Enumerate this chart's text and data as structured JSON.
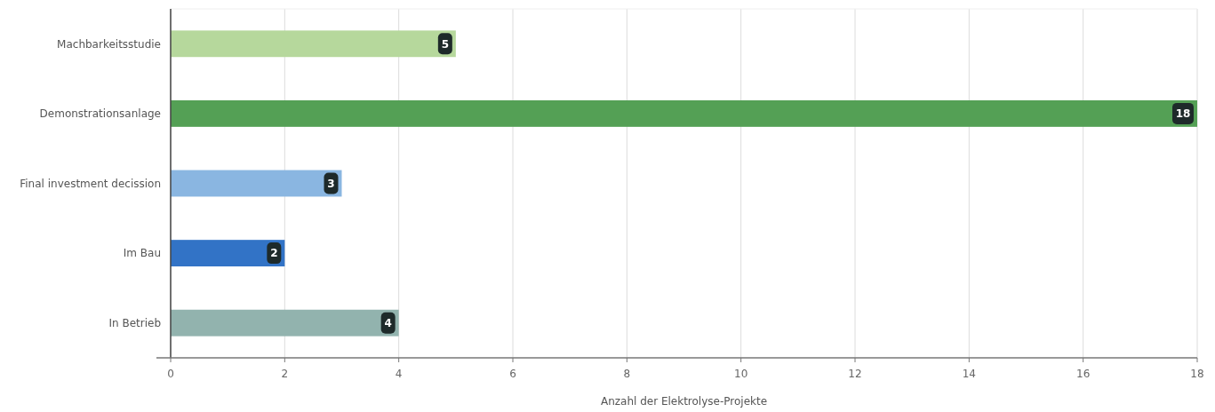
{
  "chart_data": {
    "type": "bar",
    "orientation": "horizontal",
    "xlabel": "Anzahl der Elektrolyse-Projekte",
    "categories": [
      "Machbarkeitsstudie",
      "Demonstrationsanlage",
      "Final investment decission",
      "Im Bau",
      "In Betrieb"
    ],
    "values": [
      5,
      18,
      3,
      2,
      4
    ],
    "colors": [
      "#b6d89c",
      "#54a055",
      "#8ab6e1",
      "#3273c6",
      "#92b3ae"
    ],
    "xlim": [
      0,
      18
    ],
    "xticks": [
      0,
      2,
      4,
      6,
      8,
      10,
      12,
      14,
      16,
      18
    ],
    "grid": "x",
    "data_labels": true
  }
}
